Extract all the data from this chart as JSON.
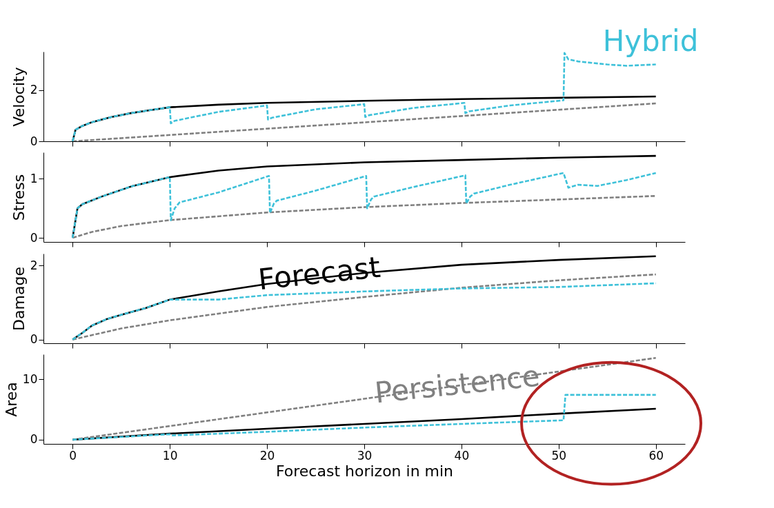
{
  "chart_data": [
    {
      "type": "line",
      "ylabel": "Velocity",
      "xlim": [
        -3,
        63
      ],
      "xticks": [
        0,
        10,
        20,
        30,
        40,
        50,
        60
      ],
      "ylim": [
        0,
        3.5
      ],
      "yticks": [
        0,
        2
      ],
      "tick_labels": "y",
      "grid": false,
      "series": [
        {
          "color": "#000000",
          "line_style": "solid",
          "x": [
            0,
            0.3,
            1,
            2,
            4,
            6,
            8,
            10,
            15,
            20,
            30,
            40,
            50,
            60
          ],
          "values": [
            0,
            0.45,
            0.6,
            0.75,
            0.95,
            1.1,
            1.22,
            1.33,
            1.43,
            1.5,
            1.58,
            1.65,
            1.7,
            1.75
          ]
        },
        {
          "color": "#808080",
          "line_style": "dashed",
          "x": [
            0,
            60
          ],
          "values": [
            0,
            1.48
          ]
        },
        {
          "name": "Hybrid",
          "color": "#3ec1d9",
          "line_style": "dashed",
          "x": [
            0,
            0.3,
            1,
            2,
            4,
            6,
            8,
            10,
            10.1,
            10.5,
            15,
            20,
            20.1,
            20.5,
            25,
            30,
            30.1,
            30.5,
            35,
            40.3,
            40.4,
            40.8,
            45,
            50.5,
            50.6,
            51,
            52,
            55,
            57,
            60
          ],
          "values": [
            0,
            0.45,
            0.6,
            0.75,
            0.95,
            1.1,
            1.22,
            1.33,
            0.7,
            0.8,
            1.15,
            1.4,
            0.85,
            0.92,
            1.25,
            1.45,
            0.95,
            1.02,
            1.3,
            1.5,
            1.1,
            1.17,
            1.4,
            1.6,
            3.45,
            3.2,
            3.12,
            3.0,
            2.95,
            3.0
          ]
        }
      ]
    },
    {
      "type": "line",
      "ylabel": "Stress",
      "xlim": [
        -3,
        63
      ],
      "xticks": [
        0,
        10,
        20,
        30,
        40,
        50,
        60
      ],
      "ylim": [
        -0.07,
        1.45
      ],
      "yticks": [
        0,
        1
      ],
      "tick_labels": "y",
      "grid": false,
      "series": [
        {
          "color": "#000000",
          "line_style": "solid",
          "x": [
            0,
            0.5,
            1,
            3,
            6,
            10,
            15,
            20,
            30,
            40,
            50,
            60
          ],
          "values": [
            0,
            0.5,
            0.57,
            0.7,
            0.87,
            1.03,
            1.14,
            1.21,
            1.28,
            1.32,
            1.36,
            1.39
          ]
        },
        {
          "color": "#808080",
          "line_style": "dashed",
          "x": [
            0,
            2,
            5,
            10,
            20,
            30,
            40,
            50,
            60
          ],
          "values": [
            0,
            0.1,
            0.2,
            0.3,
            0.43,
            0.52,
            0.59,
            0.65,
            0.71
          ]
        },
        {
          "color": "#3ec1d9",
          "line_style": "dashed",
          "x": [
            0,
            0.5,
            1,
            3,
            6,
            10,
            10.1,
            10.5,
            11,
            15,
            20.2,
            20.3,
            20.7,
            21,
            25,
            30.2,
            30.3,
            30.7,
            31,
            35,
            40.4,
            40.5,
            40.9,
            41.3,
            45,
            50.5,
            51,
            52,
            54,
            57,
            60
          ],
          "values": [
            0,
            0.5,
            0.57,
            0.7,
            0.87,
            1.03,
            0.3,
            0.5,
            0.6,
            0.77,
            1.05,
            0.42,
            0.58,
            0.63,
            0.8,
            1.05,
            0.5,
            0.65,
            0.7,
            0.86,
            1.06,
            0.58,
            0.7,
            0.75,
            0.9,
            1.1,
            0.85,
            0.9,
            0.88,
            0.98,
            1.1
          ]
        }
      ]
    },
    {
      "type": "line",
      "ylabel": "Damage",
      "xlim": [
        -3,
        63
      ],
      "xticks": [
        0,
        10,
        20,
        30,
        40,
        50,
        60
      ],
      "ylim": [
        -0.1,
        2.32
      ],
      "yticks": [
        0,
        2
      ],
      "tick_labels": "y",
      "grid": false,
      "series": [
        {
          "name": "Forecast",
          "color": "#000000",
          "line_style": "solid",
          "x": [
            0,
            1,
            2,
            3.5,
            5,
            7.5,
            10,
            15,
            20,
            30,
            40,
            50,
            60
          ],
          "values": [
            0,
            0.18,
            0.38,
            0.55,
            0.67,
            0.85,
            1.08,
            1.3,
            1.5,
            1.8,
            2.02,
            2.15,
            2.25
          ]
        },
        {
          "color": "#808080",
          "line_style": "dashed",
          "x": [
            0,
            5,
            10,
            20,
            30,
            40,
            50,
            60
          ],
          "values": [
            0,
            0.3,
            0.52,
            0.88,
            1.15,
            1.4,
            1.6,
            1.76
          ]
        },
        {
          "color": "#3ec1d9",
          "line_style": "dashed",
          "x": [
            0,
            1,
            2,
            3.5,
            5,
            7.5,
            10,
            15,
            20,
            30,
            40,
            50,
            60
          ],
          "values": [
            0,
            0.18,
            0.38,
            0.55,
            0.67,
            0.85,
            1.08,
            1.08,
            1.2,
            1.3,
            1.38,
            1.42,
            1.52
          ]
        }
      ]
    },
    {
      "type": "line",
      "ylabel": "Area",
      "xlabel": "Forecast horizon in min",
      "xlim": [
        -3,
        63
      ],
      "xticks": [
        0,
        10,
        20,
        30,
        40,
        50,
        60
      ],
      "ylim": [
        -0.7,
        14.1
      ],
      "yticks": [
        0,
        10
      ],
      "grid": false,
      "series": [
        {
          "color": "#000000",
          "line_style": "solid",
          "x": [
            0,
            10,
            20,
            30,
            40,
            50,
            60
          ],
          "values": [
            0,
            1.0,
            1.8,
            2.6,
            3.4,
            4.3,
            5.1
          ]
        },
        {
          "name": "Persistence",
          "color": "#808080",
          "line_style": "dashed",
          "x": [
            0,
            60
          ],
          "values": [
            0,
            13.5
          ]
        },
        {
          "color": "#3ec1d9",
          "line_style": "dashed",
          "x": [
            0,
            10,
            10.3,
            20,
            30,
            40,
            50.5,
            50.7,
            60
          ],
          "values": [
            0,
            0.9,
            0.7,
            1.3,
            2.0,
            2.6,
            3.2,
            7.4,
            7.4
          ]
        }
      ]
    }
  ]
}
